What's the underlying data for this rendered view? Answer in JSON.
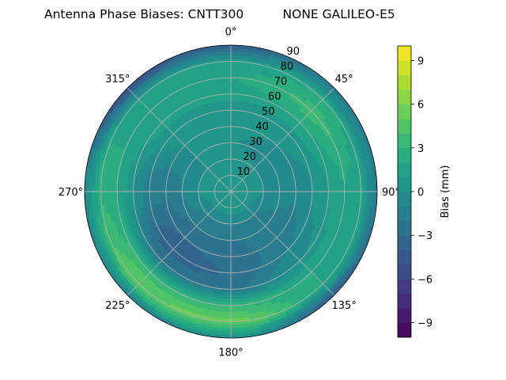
{
  "chart_data": {
    "type": "heatmap",
    "subtype": "polar-filled-contour",
    "title": "Antenna Phase Biases: CNTT300          NONE GALILEO-E5",
    "azimuth_deg": [
      0,
      45,
      90,
      135,
      180,
      225,
      270,
      315
    ],
    "zenith_deg": [
      0,
      10,
      20,
      30,
      40,
      50,
      60,
      70,
      80,
      90
    ],
    "values_mm": [
      [
        0.5,
        0.5,
        0.5,
        0.5,
        0.5,
        0.5,
        0.5,
        0.5
      ],
      [
        0.5,
        0.5,
        0.5,
        0.5,
        0.5,
        0.5,
        0.5,
        0.5
      ],
      [
        1,
        0,
        0,
        -1,
        -1,
        -1,
        0,
        0
      ],
      [
        0,
        -0.5,
        -0.5,
        -1.5,
        -2,
        -2,
        -1,
        0
      ],
      [
        0.5,
        0,
        -1,
        -1.5,
        -2.5,
        -3,
        -2,
        0
      ],
      [
        0,
        0.5,
        0,
        -1,
        -3,
        -4,
        -1.5,
        0.5
      ],
      [
        1.5,
        2,
        1,
        0,
        -2,
        -2,
        0,
        1.5
      ],
      [
        2,
        3.5,
        2,
        2,
        3,
        3.5,
        2,
        2
      ],
      [
        1,
        2,
        1.5,
        2,
        5.5,
        5,
        3,
        1
      ],
      [
        -4,
        -2,
        -2,
        -4,
        0,
        -1,
        -1,
        -5
      ]
    ],
    "angular_tick_labels": [
      "0°",
      "45°",
      "90°",
      "135°",
      "180°",
      "225°",
      "270°",
      "315°"
    ],
    "radial_tick_labels": [
      "10",
      "20",
      "30",
      "40",
      "50",
      "60",
      "70",
      "80",
      "90"
    ],
    "radial_range": [
      0,
      90
    ],
    "theta_zero": "top",
    "theta_direction": "clockwise",
    "grid": true,
    "colormap": "viridis",
    "colorbar": {
      "label": "Bias (mm)",
      "range": [
        -10,
        10
      ],
      "level_step": 1,
      "tick_labels": [
        "−9",
        "−6",
        "−3",
        "0",
        "3",
        "6",
        "9"
      ],
      "tick_values": [
        -9,
        -6,
        -3,
        0,
        3,
        6,
        9
      ]
    }
  }
}
